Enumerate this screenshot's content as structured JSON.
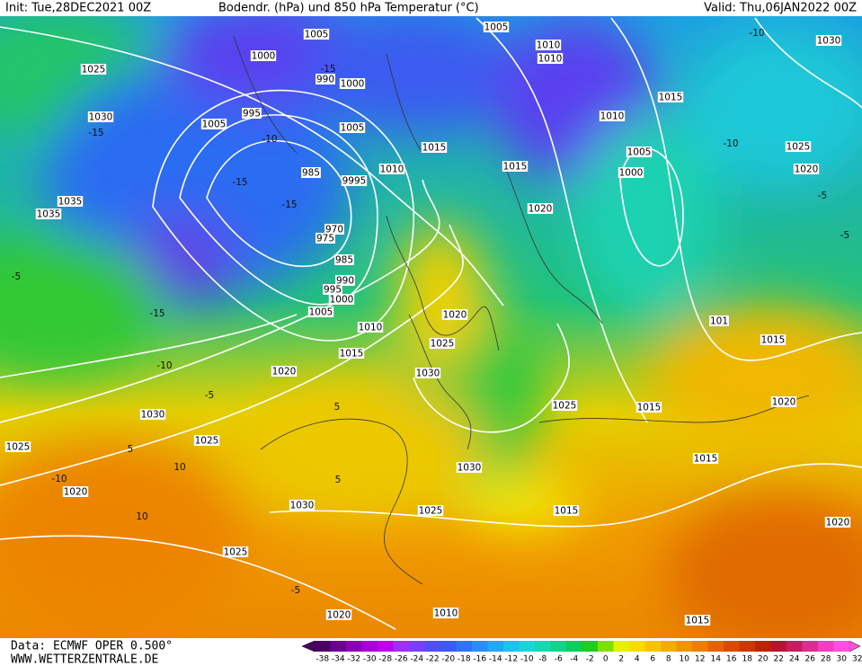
{
  "header": {
    "init": "Init: Tue,28DEC2021 00Z",
    "title": "Bodendr. (hPa) und 850 hPa Temperatur (°C)",
    "valid": "Valid: Thu,06JAN2022 00Z"
  },
  "footer": {
    "data": "Data: ECMWF OPER 0.500°",
    "site": "WWW.WETTERZENTRALE.DE"
  },
  "isobar_labels": [
    "1005",
    "1005",
    "1010",
    "1010",
    "1030",
    "1025",
    "1000",
    "990",
    "1000",
    "1015",
    "1030",
    "1005",
    "995",
    "1005",
    "1010",
    "1015",
    "1005",
    "1025",
    "1015",
    "1000",
    "1020",
    "985",
    "9995",
    "1010",
    "1035",
    "1035",
    "1020",
    "970",
    "975",
    "985",
    "990",
    "995",
    "1000",
    "1005",
    "1020",
    "1010",
    "101",
    "1015",
    "1025",
    "1015",
    "1030",
    "1020",
    "1020",
    "1025",
    "1015",
    "1030",
    "1025",
    "1025",
    "1030",
    "1015",
    "1020",
    "1030",
    "1025",
    "1015",
    "1020",
    "1025",
    "1020",
    "1010",
    "1015"
  ],
  "temperature_labels": [
    "-15",
    "-15",
    "-15",
    "-15",
    "-15",
    "-10",
    "-10",
    "-10",
    "-5",
    "-5",
    "5",
    "10",
    "-10",
    "10",
    "5",
    "-5",
    "5",
    "-5",
    "-10",
    "-5"
  ],
  "colorbar": {
    "labels": [
      "-38",
      "-34",
      "-32",
      "-30",
      "-28",
      "-26",
      "-24",
      "-22",
      "-20",
      "-18",
      "-16",
      "-14",
      "-12",
      "-10",
      "-8",
      "-6",
      "-4",
      "-2",
      "0",
      "2",
      "4",
      "6",
      "8",
      "10",
      "12",
      "14",
      "16",
      "18",
      "20",
      "22",
      "24",
      "26",
      "28",
      "30",
      "32"
    ],
    "colors": [
      "#4a0060",
      "#6a0090",
      "#8c00b4",
      "#a800d4",
      "#c000e8",
      "#a030f0",
      "#7a40f4",
      "#5050f0",
      "#3c5af0",
      "#2f74f2",
      "#2a8ef4",
      "#22a8f4",
      "#1ec2ee",
      "#1cd4d8",
      "#18d6b0",
      "#14d288",
      "#10cc5a",
      "#20cc20",
      "#7ee000",
      "#e6f000",
      "#f8dc00",
      "#f8c400",
      "#f4ac00",
      "#f09400",
      "#ec7e00",
      "#e06400",
      "#d44c00",
      "#c83800",
      "#bc2400",
      "#b01830",
      "#c02060",
      "#d83090",
      "#ec40c0",
      "#ff50e0"
    ]
  }
}
